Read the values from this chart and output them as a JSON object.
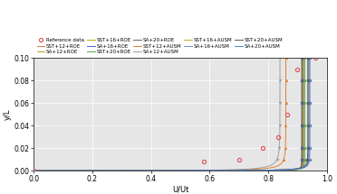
{
  "xlabel": "U/Ut",
  "ylabel": "y/L",
  "xlim": [
    0,
    1.0
  ],
  "ylim": [
    0.0,
    0.1
  ],
  "yticks": [
    0.0,
    0.02,
    0.04,
    0.06,
    0.08,
    0.1
  ],
  "xticks": [
    0,
    0.2,
    0.4,
    0.6,
    0.8,
    1.0
  ],
  "background_color": "#e6e6e6",
  "series_styles": [
    {
      "name": "Reference data",
      "color": "#e05050",
      "marker": "o",
      "ls": "none",
      "lw": 0.0,
      "ms": 3.0,
      "mfc": "none",
      "mew": 0.8,
      "group": "ref"
    },
    {
      "name": "SST+12+ROE",
      "color": "#e07830",
      "marker": "o",
      "ls": "-",
      "lw": 0.7,
      "ms": 1.8,
      "mfc": null,
      "mew": 0.5,
      "group": "ROE_tight"
    },
    {
      "name": "SA+12+ROE",
      "color": "#b0a020",
      "marker": "s",
      "ls": "-",
      "lw": 0.7,
      "ms": 1.8,
      "mfc": null,
      "mew": 0.5,
      "group": "ROE_tight"
    },
    {
      "name": "SST+16+ROE",
      "color": "#c8a800",
      "marker": "^",
      "ls": "-",
      "lw": 0.7,
      "ms": 1.8,
      "mfc": null,
      "mew": 0.5,
      "group": "ROE_tight"
    },
    {
      "name": "SA+16+ROE",
      "color": "#4868c8",
      "marker": "D",
      "ls": "-",
      "lw": 0.7,
      "ms": 1.8,
      "mfc": null,
      "mew": 0.5,
      "group": "ROE_tight"
    },
    {
      "name": "SST+20+ROE",
      "color": "#60a060",
      "marker": "o",
      "ls": "-",
      "lw": 0.7,
      "ms": 1.8,
      "mfc": null,
      "mew": 0.5,
      "group": "ROE_tight"
    },
    {
      "name": "SA+20+ROE",
      "color": "#606060",
      "marker": ">",
      "ls": "-",
      "lw": 0.7,
      "ms": 1.8,
      "mfc": null,
      "mew": 0.5,
      "group": "ROE_tight"
    },
    {
      "name": "SST+12+AUSM",
      "color": "#e08030",
      "marker": "^",
      "ls": "-",
      "lw": 0.7,
      "ms": 1.8,
      "mfc": null,
      "mew": 0.5,
      "group": "AUSM_spread"
    },
    {
      "name": "SA+12+AUSM",
      "color": "#a0a0a0",
      "marker": "v",
      "ls": "-",
      "lw": 0.7,
      "ms": 1.8,
      "mfc": null,
      "mew": 0.5,
      "group": "AUSM_spread"
    },
    {
      "name": "SST+16+AUSM",
      "color": "#c8a832",
      "marker": "s",
      "ls": "-",
      "lw": 0.7,
      "ms": 1.8,
      "mfc": null,
      "mew": 0.5,
      "group": "AUSM_tight"
    },
    {
      "name": "SA+16+AUSM",
      "color": "#6888d8",
      "marker": "o",
      "ls": "-",
      "lw": 0.7,
      "ms": 1.8,
      "mfc": null,
      "mew": 0.5,
      "group": "AUSM_tight"
    },
    {
      "name": "SST+20+AUSM",
      "color": "#585858",
      "marker": "D",
      "ls": "-",
      "lw": 0.7,
      "ms": 1.8,
      "mfc": null,
      "mew": 0.5,
      "group": "AUSM_tight"
    },
    {
      "name": "SA+20+AUSM",
      "color": "#4888d0",
      "marker": "<",
      "ls": "-",
      "lw": 0.7,
      "ms": 1.8,
      "mfc": null,
      "mew": 0.5,
      "group": "AUSM_tight"
    }
  ],
  "ref_x": [
    0.0,
    0.58,
    0.7,
    0.78,
    0.835,
    0.865,
    0.9,
    0.96
  ],
  "ref_y": [
    0.0,
    0.008,
    0.01,
    0.02,
    0.03,
    0.05,
    0.09,
    0.1
  ],
  "ROE_tight_xe": 0.92,
  "ROE_tight_steep": 22,
  "AUSM_spread_xe1": 0.85,
  "AUSM_spread_xe2": 0.87,
  "AUSM_tight_xe": 0.94,
  "AUSM_tight_steep": 14
}
